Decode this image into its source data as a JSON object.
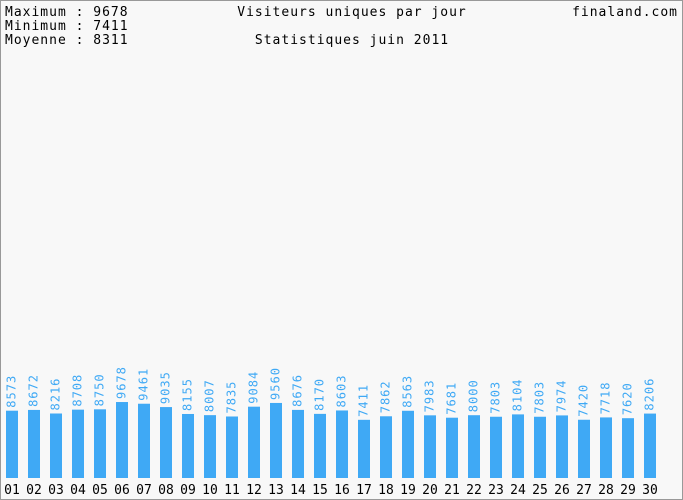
{
  "stats": [
    "Maximum : 9678",
    "Minimum : 7411",
    "Moyenne : 8311"
  ],
  "chart_data": {
    "type": "bar",
    "title": "Visiteurs uniques par jour",
    "subtitle": "Statistiques juin 2011",
    "site": "finaland.com",
    "categories": [
      "01",
      "02",
      "03",
      "04",
      "05",
      "06",
      "07",
      "08",
      "09",
      "10",
      "11",
      "12",
      "13",
      "14",
      "15",
      "16",
      "17",
      "18",
      "19",
      "20",
      "21",
      "22",
      "23",
      "24",
      "25",
      "26",
      "27",
      "28",
      "29",
      "30"
    ],
    "values": [
      8573,
      8672,
      8216,
      8708,
      8750,
      9678,
      9461,
      9035,
      8155,
      8007,
      7835,
      9084,
      9560,
      8676,
      8170,
      8603,
      7411,
      7862,
      8563,
      7983,
      7681,
      8000,
      7803,
      8104,
      7803,
      7974,
      7420,
      7718,
      7620,
      8206
    ],
    "color": "#3fa9f5"
  }
}
